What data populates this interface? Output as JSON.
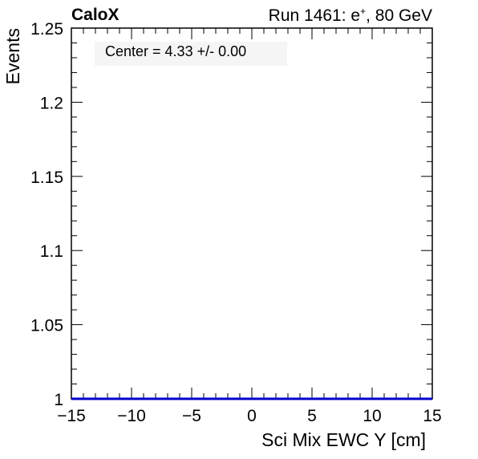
{
  "header": {
    "brand": "CaloX",
    "run_prefix": "Run 1461: e",
    "run_sup": "+",
    "run_suffix": ", 80 GeV"
  },
  "legend": {
    "text": "Center = 4.33 +/- 0.00"
  },
  "chart_data": {
    "type": "line",
    "xlabel": "Sci Mix EWC Y [cm]",
    "ylabel": "Events",
    "xlim": [
      -15,
      15
    ],
    "ylim": [
      1,
      1.25
    ],
    "x_ticks": [
      -15,
      -10,
      -5,
      0,
      5,
      10,
      15
    ],
    "x_tick_labels": [
      "−15",
      "−10",
      "−5",
      "0",
      "5",
      "10",
      "15"
    ],
    "y_ticks": [
      1,
      1.05,
      1.1,
      1.15,
      1.2,
      1.25
    ],
    "y_tick_labels": [
      "1",
      "1.05",
      "1.1",
      "1.15",
      "1.2",
      "1.25"
    ],
    "series": [
      {
        "x": [
          -15,
          15
        ],
        "y": [
          1,
          1
        ],
        "color": "#0000cc"
      }
    ],
    "grid": false,
    "colors": {
      "axis": "#000000",
      "series": "#0000cc",
      "legend_bg": "#f5f5f5"
    }
  }
}
